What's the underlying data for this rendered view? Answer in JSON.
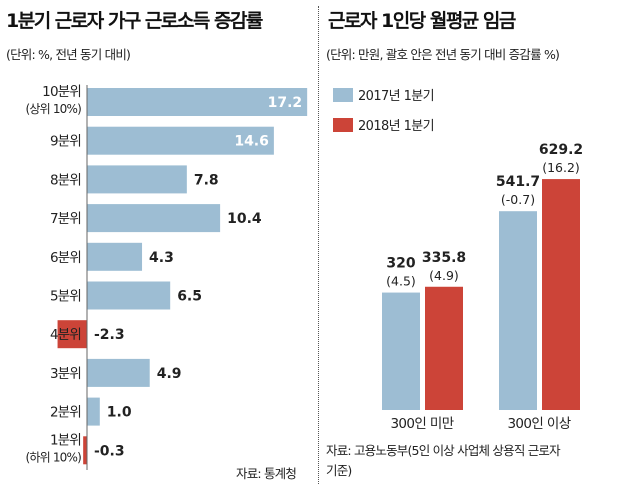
{
  "chart_data": [
    {
      "type": "bar",
      "orientation": "horizontal",
      "title": "1분기 근로자 가구 근로소득 증감률",
      "subtitle": "(단위: %, 전년 동기 대비)",
      "categories": [
        [
          "10분위",
          "(상위 10%)"
        ],
        [
          "9분위"
        ],
        [
          "8분위"
        ],
        [
          "7분위"
        ],
        [
          "6분위"
        ],
        [
          "5분위"
        ],
        [
          "4분위"
        ],
        [
          "3분위"
        ],
        [
          "2분위"
        ],
        [
          "1분위",
          "(하위 10%)"
        ]
      ],
      "values": [
        17.2,
        14.6,
        7.8,
        10.4,
        4.3,
        6.5,
        -2.3,
        4.9,
        1.0,
        -0.3
      ],
      "value_labels": [
        "17.2",
        "14.6",
        "7.8",
        "10.4",
        "4.3",
        "6.5",
        "-2.3",
        "4.9",
        "1.0",
        "-0.3"
      ],
      "colors": {
        "positive": "#9dbdd3",
        "negative": "#cc4438"
      },
      "source": "자료: 통계청"
    },
    {
      "type": "bar",
      "title": "근로자 1인당 월평균 임금",
      "subtitle": "(단위: 만원, 괄호 안은 전년 동기 대비 증감률 %)",
      "categories": [
        "300인 미만",
        "300인 이상"
      ],
      "series": [
        {
          "name": "2017년 1분기",
          "color": "#9dbdd3",
          "values": [
            320,
            541.7
          ],
          "value_labels": [
            "320",
            "541.7"
          ],
          "change_labels": [
            "(4.5)",
            "(-0.7)"
          ]
        },
        {
          "name": "2018년 1분기",
          "color": "#cc4438",
          "values": [
            335.8,
            629.2
          ],
          "value_labels": [
            "335.8",
            "629.2"
          ],
          "change_labels": [
            "(4.9)",
            "(16.2)"
          ]
        }
      ],
      "legend": "top-left",
      "source": [
        "자료: 고용노동부(5인 이상 사업체 상용직 근로자",
        "기준)"
      ]
    }
  ]
}
